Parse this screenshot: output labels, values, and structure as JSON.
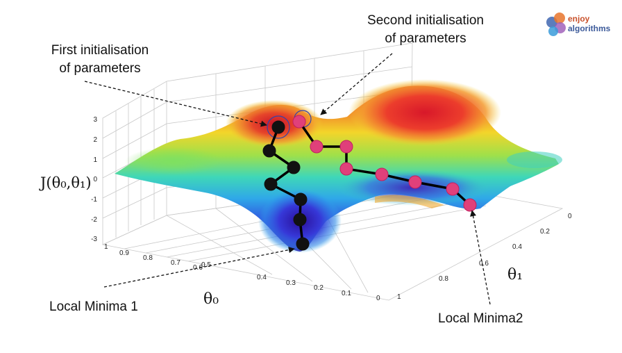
{
  "annotations": {
    "first_init": [
      "First initialisation",
      "of parameters"
    ],
    "second_init": [
      "Second initialisation",
      "of parameters"
    ],
    "local_min_1": "Local Minima 1",
    "local_min_2": "Local Minima2"
  },
  "axes": {
    "z_label": "J(θ₀,θ₁)",
    "x_label": "θ₀",
    "y_label": "θ₁",
    "z_ticks": [
      "3",
      "2",
      "1",
      "0",
      "-1",
      "-2",
      "-3"
    ],
    "theta0_ticks": [
      "1",
      "0.9",
      "0.8",
      "0.7",
      "0.6",
      "0.5",
      "0.4",
      "0.3",
      "0.2",
      "0.1",
      "0"
    ],
    "theta1_ticks": [
      "0",
      "0.2",
      "0.4",
      "0.6",
      "0.8",
      "1"
    ]
  },
  "logo": {
    "line1": "enjoy",
    "line2": "algorithms",
    "colors": [
      "#4a6fb5",
      "#e8742c",
      "#9b59b6",
      "#3a9bd9"
    ]
  },
  "colors": {
    "path": "#000000",
    "path_black_markers": "#111111",
    "path_pink_markers": "#e0407a",
    "ring": "#3344aa"
  }
}
